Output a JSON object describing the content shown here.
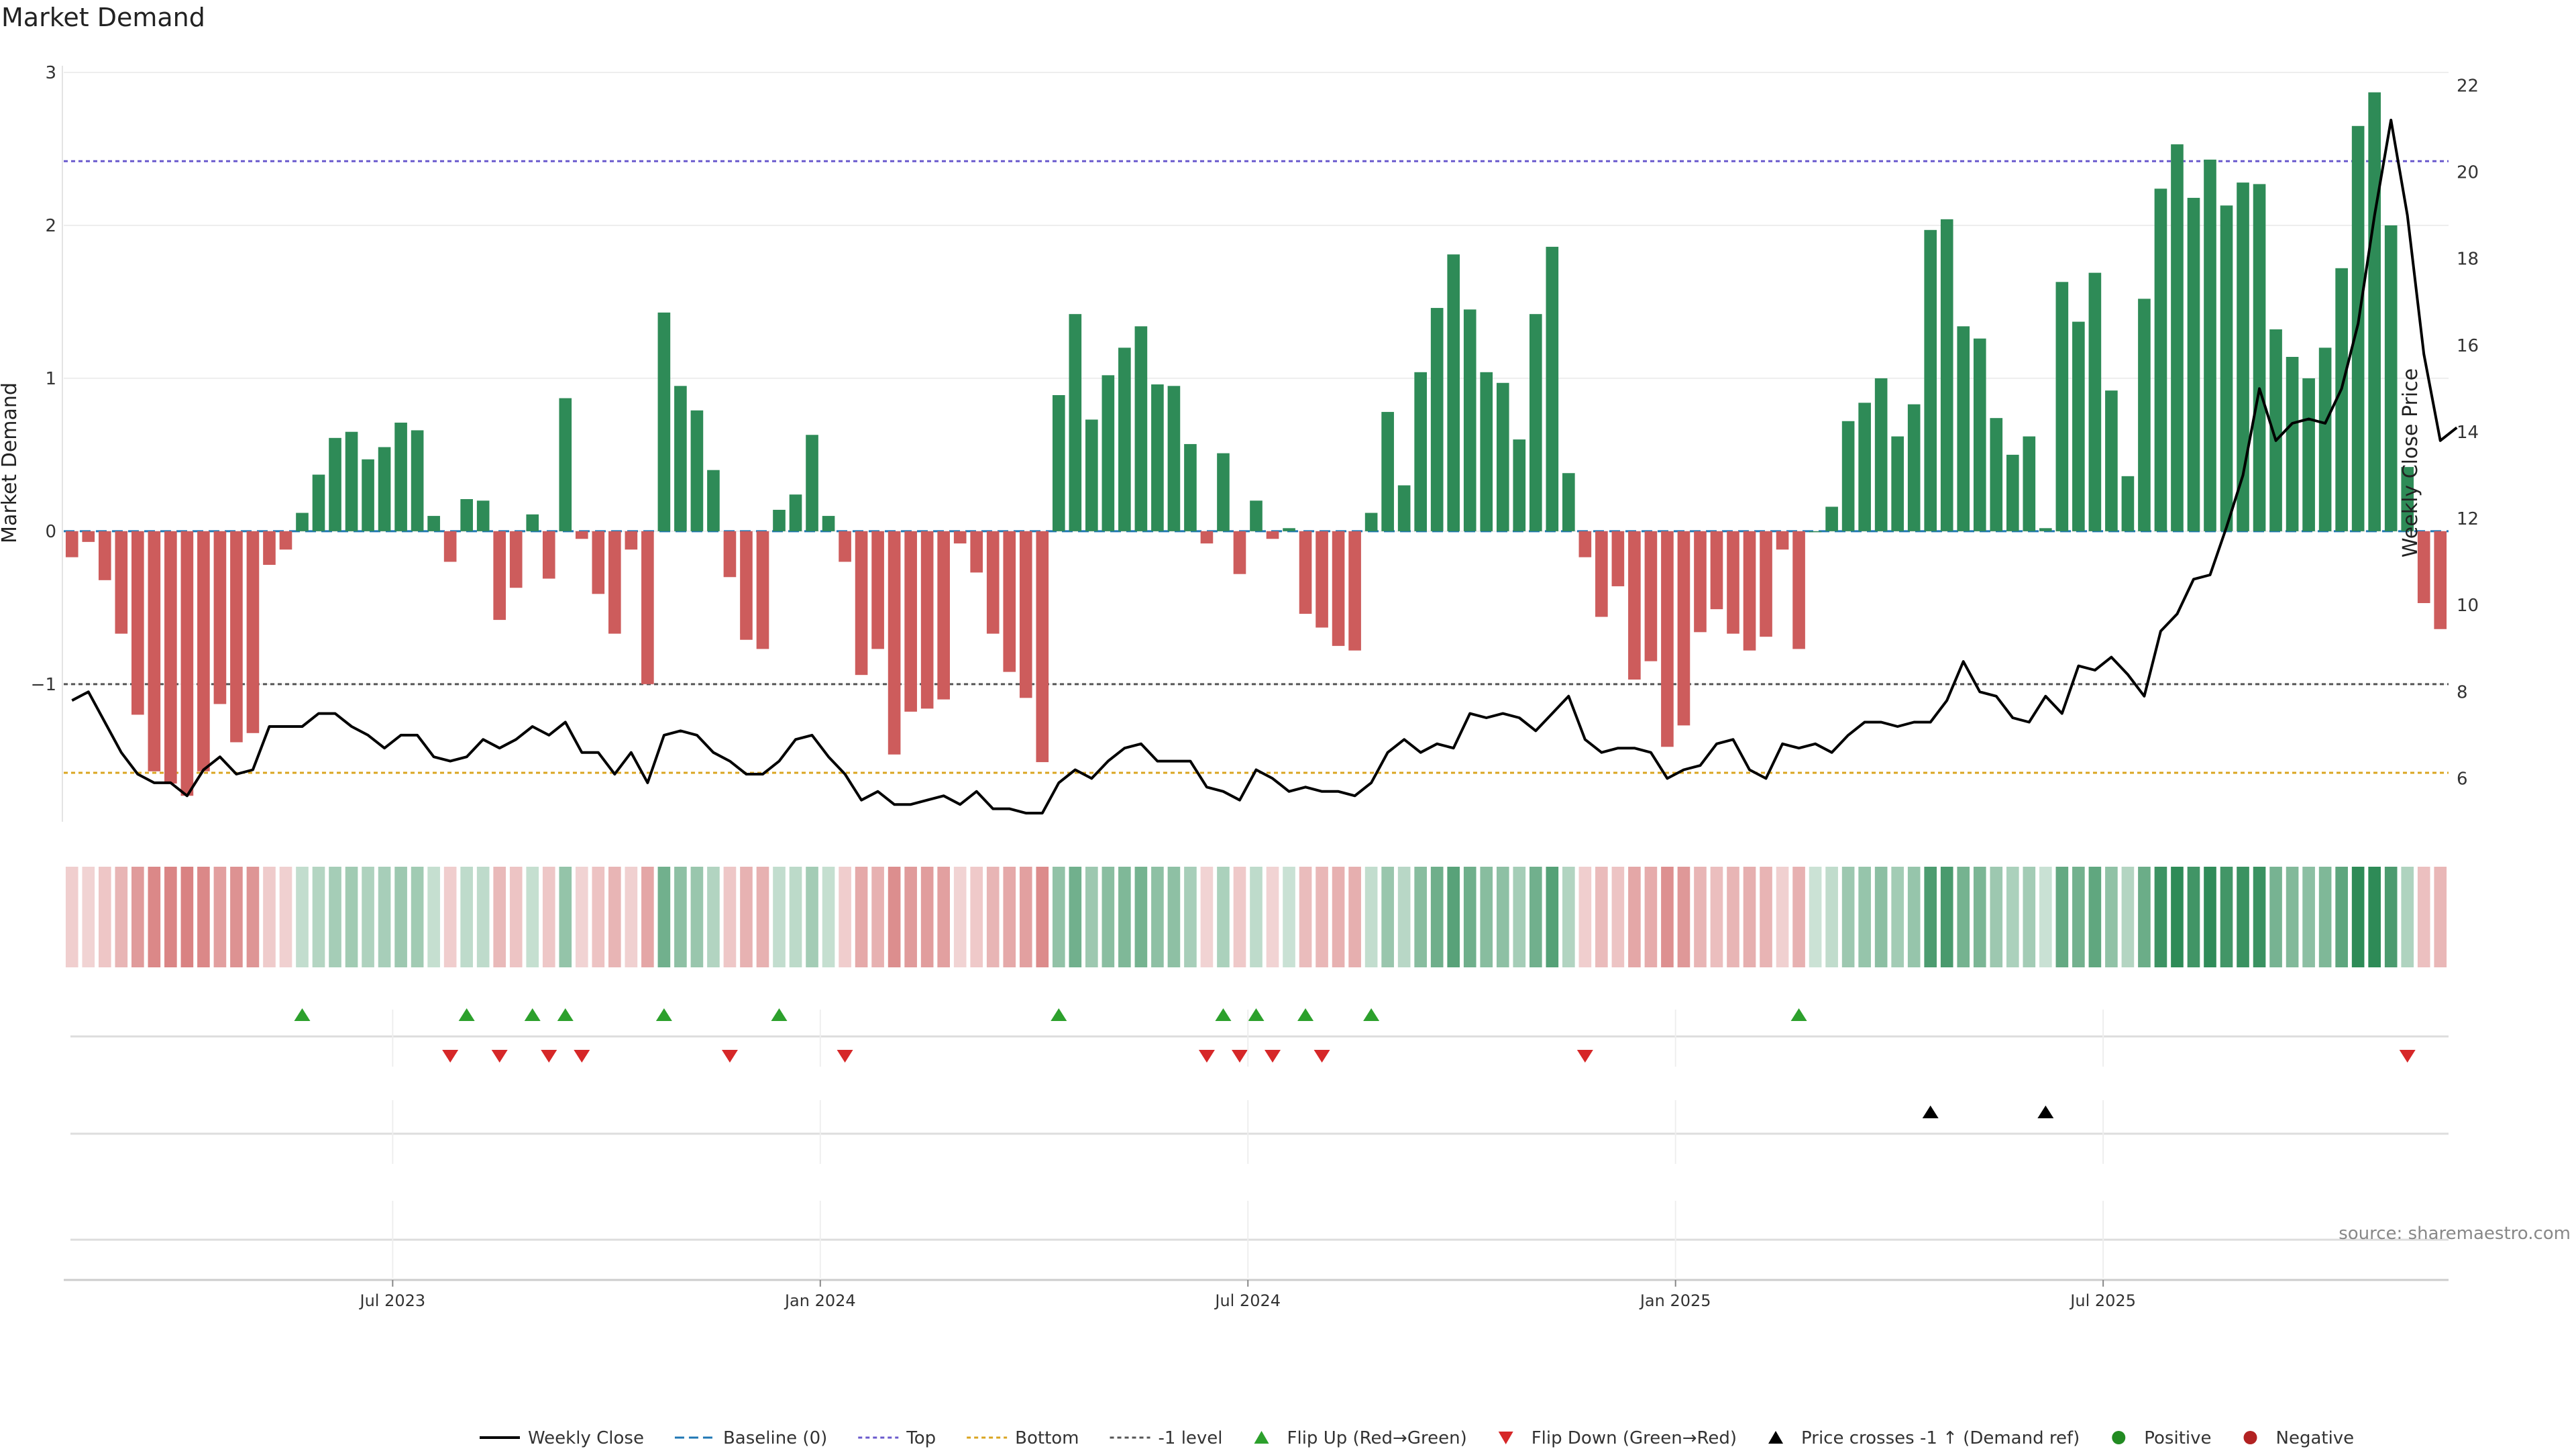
{
  "title": "Market Demand",
  "source": "source: sharemaestro.com",
  "colors": {
    "positive": "#2e8b57",
    "negative": "#cd5c5c",
    "price_line": "#000000",
    "baseline": "#1f77b4",
    "top_line": "#6a5acd",
    "bottom_line": "#daa520",
    "minus_one_line": "#555555",
    "flip_up": "#2ca02c",
    "flip_down": "#d62728",
    "cross_marker": "#000000"
  },
  "chart_data": {
    "type": "bar",
    "ylabel_left": "Market Demand",
    "ylabel_right": "Weekly Close Price",
    "left_ticks": [
      "3",
      "2",
      "1",
      "0",
      "−1"
    ],
    "left_tick_values": [
      3,
      2,
      1,
      0,
      -1
    ],
    "left_range": [
      -1.9,
      3.0
    ],
    "right_ticks": [
      "22",
      "20",
      "18",
      "16",
      "14",
      "12",
      "10",
      "8",
      "6"
    ],
    "right_tick_values": [
      22,
      20,
      18,
      16,
      14,
      12,
      10,
      8,
      6
    ],
    "right_range": [
      5.0,
      22.3
    ],
    "x_tick_labels": [
      "Jul 2023",
      "Jan 2024",
      "Jul 2024",
      "Jan 2025",
      "Jul 2025"
    ],
    "x_tick_weeks": [
      20,
      46,
      72,
      98,
      124
    ],
    "reference_lines": {
      "top": 2.42,
      "bottom": -1.58,
      "minus_one": -1.0,
      "baseline": 0
    },
    "demand": [
      -0.17,
      -0.07,
      -0.32,
      -0.67,
      -1.2,
      -1.57,
      -1.65,
      -1.73,
      -1.57,
      -1.13,
      -1.38,
      -1.32,
      -0.22,
      -0.12,
      0.12,
      0.37,
      0.61,
      0.65,
      0.47,
      0.55,
      0.71,
      0.66,
      0.1,
      -0.2,
      0.21,
      0.2,
      -0.58,
      -0.37,
      0.11,
      -0.31,
      0.87,
      -0.05,
      -0.41,
      -0.67,
      -0.12,
      -1.0,
      1.43,
      0.95,
      0.79,
      0.4,
      -0.3,
      -0.71,
      -0.77,
      0.14,
      0.24,
      0.63,
      0.1,
      -0.2,
      -0.94,
      -0.77,
      -1.46,
      -1.18,
      -1.16,
      -1.1,
      -0.08,
      -0.27,
      -0.67,
      -0.92,
      -1.09,
      -1.51,
      0.89,
      1.42,
      0.73,
      1.02,
      1.2,
      1.34,
      0.96,
      0.95,
      0.57,
      -0.08,
      0.51,
      -0.28,
      0.2,
      -0.05,
      0.02,
      -0.54,
      -0.63,
      -0.75,
      -0.78,
      0.12,
      0.78,
      0.3,
      1.04,
      1.46,
      1.81,
      1.45,
      1.04,
      0.97,
      0.6,
      1.42,
      1.86,
      0.38,
      -0.17,
      -0.56,
      -0.36,
      -0.97,
      -0.85,
      -1.41,
      -1.27,
      -0.66,
      -0.51,
      -0.67,
      -0.78,
      -0.69,
      -0.12,
      -0.77,
      0.0,
      0.16,
      0.72,
      0.84,
      1.0,
      0.62,
      0.83,
      1.97,
      2.04,
      1.34,
      1.26,
      0.74,
      0.5,
      0.62,
      0.02,
      1.63,
      1.37,
      1.69,
      0.92,
      0.36,
      1.52,
      2.24,
      2.53,
      2.18,
      2.43,
      2.13,
      2.28,
      2.27,
      1.32,
      1.14,
      1.0,
      1.2,
      1.72,
      2.65,
      2.87,
      2.0,
      0.42,
      -0.47,
      -0.64
    ],
    "weekly_close": [
      7.8,
      8.0,
      7.3,
      6.6,
      6.1,
      5.9,
      5.9,
      5.6,
      6.2,
      6.5,
      6.1,
      6.2,
      7.2,
      7.2,
      7.2,
      7.5,
      7.5,
      7.2,
      7.0,
      6.7,
      7.0,
      7.0,
      6.5,
      6.4,
      6.5,
      6.9,
      6.7,
      6.9,
      7.2,
      7.0,
      7.3,
      6.6,
      6.6,
      6.1,
      6.6,
      5.9,
      7.0,
      7.1,
      7.0,
      6.6,
      6.4,
      6.1,
      6.1,
      6.4,
      6.9,
      7.0,
      6.5,
      6.1,
      5.5,
      5.7,
      5.4,
      5.4,
      5.5,
      5.6,
      5.4,
      5.7,
      5.3,
      5.3,
      5.2,
      5.2,
      5.9,
      6.2,
      6.0,
      6.4,
      6.7,
      6.8,
      6.4,
      6.4,
      6.4,
      5.8,
      5.7,
      5.5,
      6.2,
      6.0,
      5.7,
      5.8,
      5.7,
      5.7,
      5.6,
      5.9,
      6.6,
      6.9,
      6.6,
      6.8,
      6.7,
      7.5,
      7.4,
      7.5,
      7.4,
      7.1,
      7.5,
      7.9,
      6.9,
      6.6,
      6.7,
      6.7,
      6.6,
      6.0,
      6.2,
      6.3,
      6.8,
      6.9,
      6.2,
      6.0,
      6.8,
      6.7,
      6.8,
      6.6,
      7.0,
      7.3,
      7.3,
      7.2,
      7.3,
      7.3,
      7.8,
      8.7,
      8.0,
      7.9,
      7.4,
      7.3,
      7.9,
      7.5,
      8.6,
      8.5,
      8.8,
      8.4,
      7.9,
      9.4,
      9.8,
      10.6,
      10.7,
      11.8,
      13.0,
      15.0,
      13.8,
      14.2,
      14.3,
      14.2,
      15.0,
      16.5,
      19.0,
      21.2,
      19.0,
      15.8,
      13.8,
      14.1
    ],
    "flip_up_weeks": [
      14,
      24,
      28,
      30,
      36,
      43,
      60,
      70,
      72,
      75,
      79,
      105
    ],
    "flip_down_weeks": [
      23,
      26,
      29,
      31,
      40,
      47,
      69,
      71,
      73,
      76,
      92,
      142
    ],
    "price_cross_weeks": [
      113,
      120
    ],
    "legend": [
      "Weekly Close",
      "Baseline (0)",
      "Top",
      "Bottom",
      "-1 level",
      "Flip Up (Red→Green)",
      "Flip Down (Green→Red)",
      "Price crosses -1 ↑ (Demand ref)",
      "Positive",
      "Negative"
    ]
  }
}
